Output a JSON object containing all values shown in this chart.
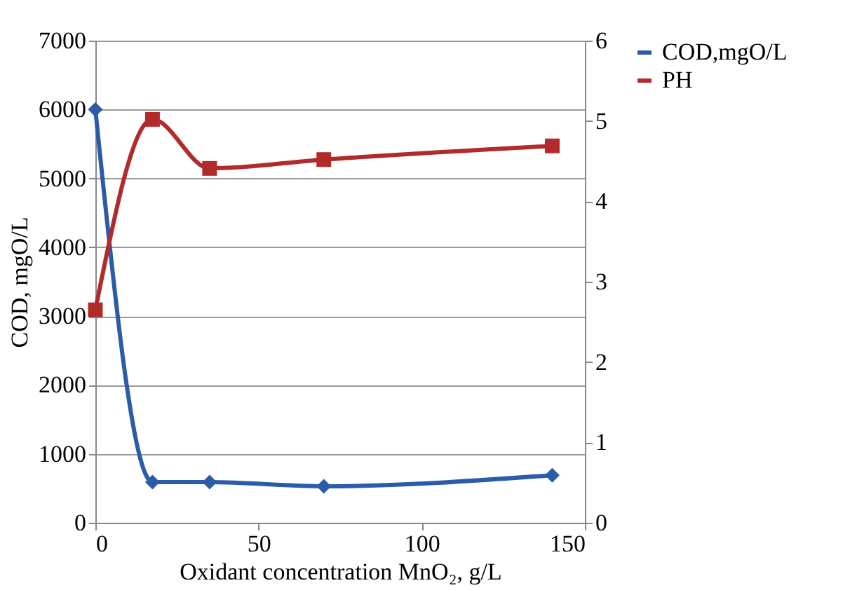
{
  "chart_data": {
    "type": "line",
    "xlabel": "Oxidant concentration MnO₂, g/L",
    "ylabel": "COD, mgO/L",
    "x": [
      0,
      17.5,
      35,
      70,
      140
    ],
    "series": [
      {
        "name": "COD,mgO/L",
        "color": "#2a5caa",
        "marker": "diamond",
        "values": [
          6000,
          590,
          590,
          530,
          690
        ]
      },
      {
        "name": "PH",
        "color": "#b22a2a",
        "marker": "square",
        "axis": "y2",
        "values": [
          2.65,
          5.02,
          4.41,
          4.52,
          4.69
        ]
      }
    ],
    "xlim": [
      0,
      150
    ],
    "xticks": [
      0,
      50,
      100,
      150
    ],
    "ylim": [
      0,
      7000
    ],
    "yticks": [
      0,
      1000,
      2000,
      3000,
      4000,
      5000,
      6000,
      7000
    ],
    "y2lim": [
      0,
      6
    ],
    "y2ticks": [
      0,
      1,
      2,
      3,
      4,
      5,
      6
    ],
    "grid": "y",
    "legend": "right",
    "line_style": "solid"
  }
}
